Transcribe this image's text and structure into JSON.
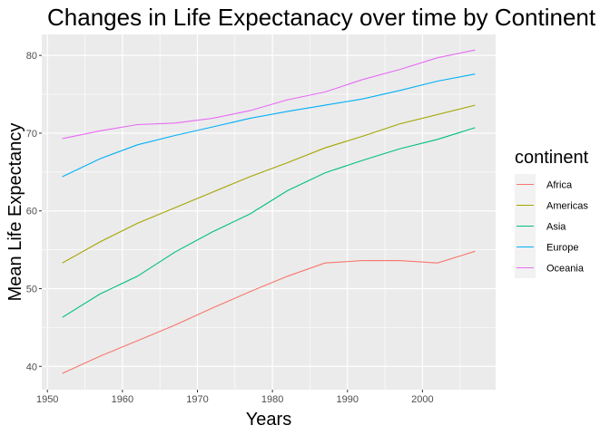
{
  "chart_data": {
    "type": "line",
    "title": "Changes in Life Expectanacy over time by Continent",
    "xlabel": "Years",
    "ylabel": "Mean Life Expectancy",
    "xlim": [
      1949.25,
      2009.75
    ],
    "ylim": [
      37.0,
      82.7
    ],
    "xticks": [
      1950,
      1960,
      1970,
      1980,
      1990,
      2000
    ],
    "yticks": [
      40,
      50,
      60,
      70,
      80
    ],
    "grid": true,
    "legend": {
      "title": "continent",
      "position": "right"
    },
    "x": [
      1952,
      1957,
      1962,
      1967,
      1972,
      1977,
      1982,
      1987,
      1992,
      1997,
      2002,
      2007
    ],
    "series": [
      {
        "name": "Africa",
        "color": "#F8766D",
        "values": [
          39.1,
          41.3,
          43.3,
          45.3,
          47.5,
          49.6,
          51.6,
          53.3,
          53.6,
          53.6,
          53.3,
          54.8
        ]
      },
      {
        "name": "Americas",
        "color": "#A3A500",
        "values": [
          53.3,
          56.0,
          58.4,
          60.4,
          62.4,
          64.4,
          66.2,
          68.1,
          69.6,
          71.2,
          72.4,
          73.6
        ]
      },
      {
        "name": "Asia",
        "color": "#00BF7D",
        "values": [
          46.3,
          49.3,
          51.6,
          54.7,
          57.3,
          59.6,
          62.6,
          64.9,
          66.5,
          68.0,
          69.2,
          70.7
        ]
      },
      {
        "name": "Europe",
        "color": "#00B0F6",
        "values": [
          64.4,
          66.7,
          68.5,
          69.7,
          70.8,
          71.9,
          72.8,
          73.6,
          74.4,
          75.5,
          76.7,
          77.6
        ]
      },
      {
        "name": "Oceania",
        "color": "#E76BF3",
        "values": [
          69.3,
          70.3,
          71.1,
          71.3,
          71.9,
          72.9,
          74.3,
          75.3,
          76.9,
          78.2,
          79.7,
          80.7
        ]
      }
    ]
  }
}
